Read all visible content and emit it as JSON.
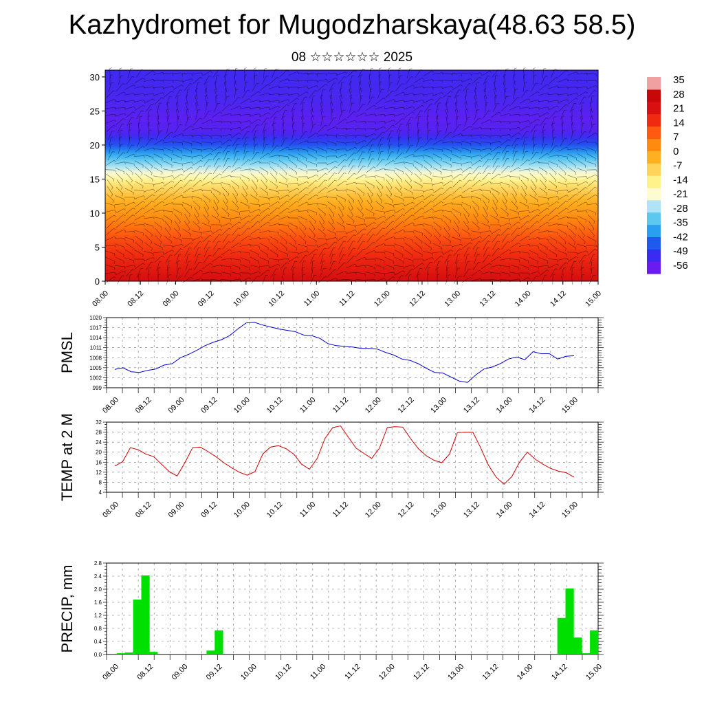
{
  "header": {
    "title": "Kazhydromet for Mugodzharskaya(48.63 58.5)",
    "subtitle": "08 ☆☆☆☆☆☆ 2025"
  },
  "time_labels": [
    "08.00",
    "08.12",
    "09.00",
    "09.12",
    "10.00",
    "10.12",
    "11.00",
    "11.12",
    "12.00",
    "12.12",
    "13.00",
    "13.12",
    "14.00",
    "14.12",
    "15.00"
  ],
  "chart_data": [
    {
      "type": "heatmap",
      "title": "",
      "xlabel": "",
      "ylabel": "",
      "ylim": [
        0,
        31
      ],
      "yticks": [
        0,
        5,
        10,
        15,
        20,
        25,
        30
      ],
      "colorbar": {
        "labels": [
          "35",
          "28",
          "21",
          "14",
          "7",
          "0",
          "-7",
          "-14",
          "-21",
          "-28",
          "-35",
          "-42",
          "-49",
          "-56"
        ],
        "range": [
          -60,
          38
        ],
        "colors": [
          "#6a1bf0",
          "#3b2bf0",
          "#1f5af0",
          "#2a9ff0",
          "#5cc8f0",
          "#aee4f5",
          "#fffbd0",
          "#fff28a",
          "#ffd25a",
          "#ffb020",
          "#ff8a10",
          "#ff5a10",
          "#f02a10",
          "#d81010",
          "#c80808",
          "#f0a0a0"
        ]
      },
      "profile_levels": [
        0,
        3,
        6,
        9,
        12,
        14,
        16,
        18,
        20,
        22,
        24,
        26,
        28,
        31
      ],
      "profile_temps": [
        26,
        20,
        14,
        6,
        -2,
        -10,
        -22,
        -35,
        -48,
        -57,
        -58,
        -56,
        -55,
        -54
      ],
      "overlay": "wind barbs"
    },
    {
      "type": "line",
      "name": "PMSL",
      "ylabel": "PMSL",
      "ylim": [
        999,
        1020
      ],
      "yticks": [
        "999",
        "1002",
        "1005",
        "1008",
        "1011",
        "1014",
        "1017",
        "1020"
      ],
      "color": "#0000cc",
      "values": [
        1004.5,
        1005,
        1003.8,
        1003.6,
        1004.2,
        1004.6,
        1005.8,
        1006.2,
        1008,
        1009,
        1010.2,
        1011.6,
        1012.6,
        1013.4,
        1014.6,
        1016.6,
        1018.4,
        1018.6,
        1017.8,
        1017.2,
        1016.6,
        1016.2,
        1015.8,
        1014.8,
        1014.6,
        1013.8,
        1012.2,
        1011.6,
        1011.4,
        1011.2,
        1010.8,
        1010.8,
        1010.6,
        1009.6,
        1008.8,
        1007.6,
        1007.2,
        1006.2,
        1004.8,
        1003.6,
        1003.4,
        1002.2,
        1001,
        1000.6,
        1002.8,
        1004.6,
        1005.2,
        1006.2,
        1007.6,
        1008.2,
        1007.4,
        1009.8,
        1009.2,
        1009.2,
        1007.6,
        1008.4,
        1008.6
      ]
    },
    {
      "type": "line",
      "name": "TEMP at 2 M",
      "ylabel": "TEMP at 2 M",
      "ylim": [
        4,
        32
      ],
      "yticks": [
        "4",
        "8",
        "12",
        "16",
        "20",
        "24",
        "28",
        "32"
      ],
      "color": "#cc0000",
      "values": [
        14.5,
        16.2,
        21.8,
        21,
        19.2,
        18.2,
        15.2,
        12.2,
        10.5,
        15.8,
        21.8,
        22,
        20.2,
        18.2,
        15.8,
        13.8,
        12,
        10.8,
        12.2,
        19.2,
        22,
        22.6,
        21.4,
        19.2,
        15.2,
        13.2,
        17.5,
        25.5,
        29.8,
        30.5,
        26,
        21.6,
        19.5,
        17.5,
        21.6,
        29.8,
        30.2,
        30,
        25.4,
        21.4,
        18.6,
        16.8,
        15.8,
        19.2,
        27.8,
        28,
        28,
        21.8,
        14.8,
        10,
        7.2,
        10.2,
        16,
        20,
        17.2,
        15.2,
        13.5,
        12.4,
        11.8,
        10
      ]
    },
    {
      "type": "bar",
      "name": "PRECIP, mm",
      "ylabel": "PRECIP, mm",
      "ylim": [
        0,
        2.8
      ],
      "yticks": [
        "0.0",
        "0.4",
        "0.8",
        "1.2",
        "1.6",
        "2.0",
        "2.4",
        "2.8"
      ],
      "color": "#00e000",
      "values": [
        0,
        0.04,
        0.06,
        1.68,
        2.42,
        0.08,
        0,
        0,
        0,
        0,
        0,
        0,
        0.12,
        0.74,
        0,
        0,
        0,
        0,
        0,
        0,
        0,
        0,
        0,
        0,
        0,
        0,
        0,
        0,
        0,
        0,
        0,
        0,
        0,
        0,
        0,
        0,
        0,
        0,
        0,
        0,
        0,
        0,
        0,
        0,
        0,
        0,
        0,
        0,
        0,
        0,
        0,
        0,
        0,
        0,
        0,
        1.12,
        2.02,
        0.52,
        0.04,
        0.74
      ]
    }
  ]
}
